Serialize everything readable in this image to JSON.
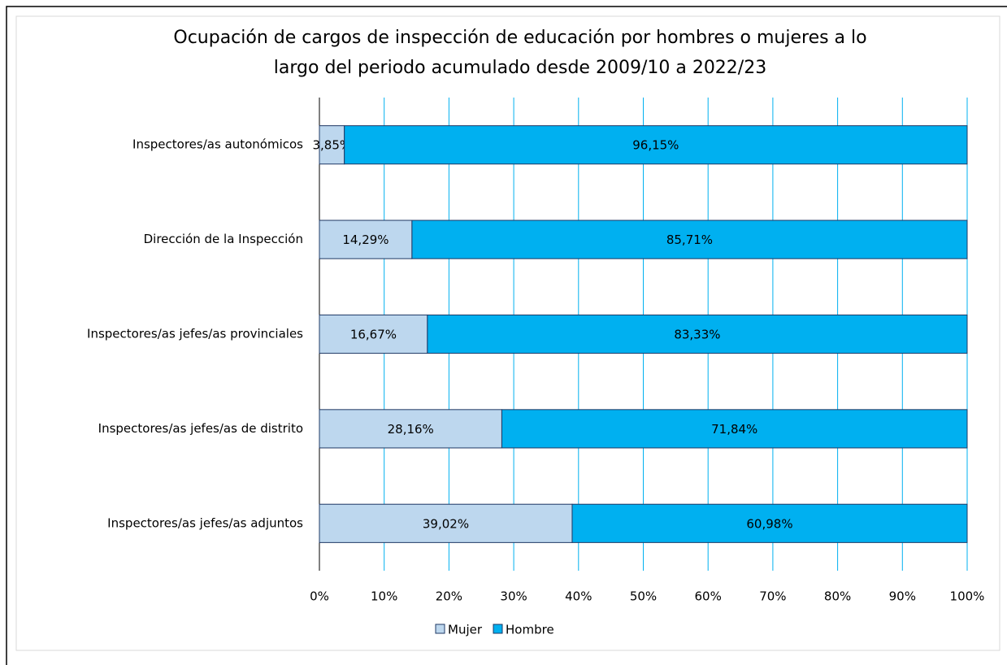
{
  "chart_data": {
    "type": "stacked-barh",
    "title": [
      "Ocupación de cargos de inspección de educación por hombres o mujeres a lo",
      "largo del periodo acumulado desde 2009/10 a 2022/23"
    ],
    "categories": [
      "Inspectores/as autonómicos",
      "Dirección de la Inspección",
      "Inspectores/as jefes/as provinciales",
      "Inspectores/as jefes/as de distrito",
      "Inspectores/as jefes/as adjuntos"
    ],
    "series": [
      {
        "name": "Mujer",
        "color": "#bdd7ee",
        "values": [
          3.85,
          14.29,
          16.67,
          28.16,
          39.02
        ],
        "value_labels": [
          "3,85%",
          "14,29%",
          "16,67%",
          "28,16%",
          "39,02%"
        ]
      },
      {
        "name": "Hombre",
        "color": "#00b0f0",
        "values": [
          96.15,
          85.71,
          83.33,
          71.84,
          60.98
        ],
        "value_labels": [
          "96,15%",
          "85,71%",
          "83,33%",
          "71,84%",
          "60,98%"
        ]
      }
    ],
    "xlim": [
      0,
      100
    ],
    "xticks": [
      {
        "value": 0,
        "label": "0%"
      },
      {
        "value": 10,
        "label": "10%"
      },
      {
        "value": 20,
        "label": "20%"
      },
      {
        "value": 30,
        "label": "30%"
      },
      {
        "value": 40,
        "label": "40%"
      },
      {
        "value": 50,
        "label": "50%"
      },
      {
        "value": 60,
        "label": "60%"
      },
      {
        "value": 70,
        "label": "70%"
      },
      {
        "value": 80,
        "label": "80%"
      },
      {
        "value": 90,
        "label": "90%"
      },
      {
        "value": 100,
        "label": "100%"
      }
    ],
    "grid": true,
    "legend": "bottom"
  }
}
